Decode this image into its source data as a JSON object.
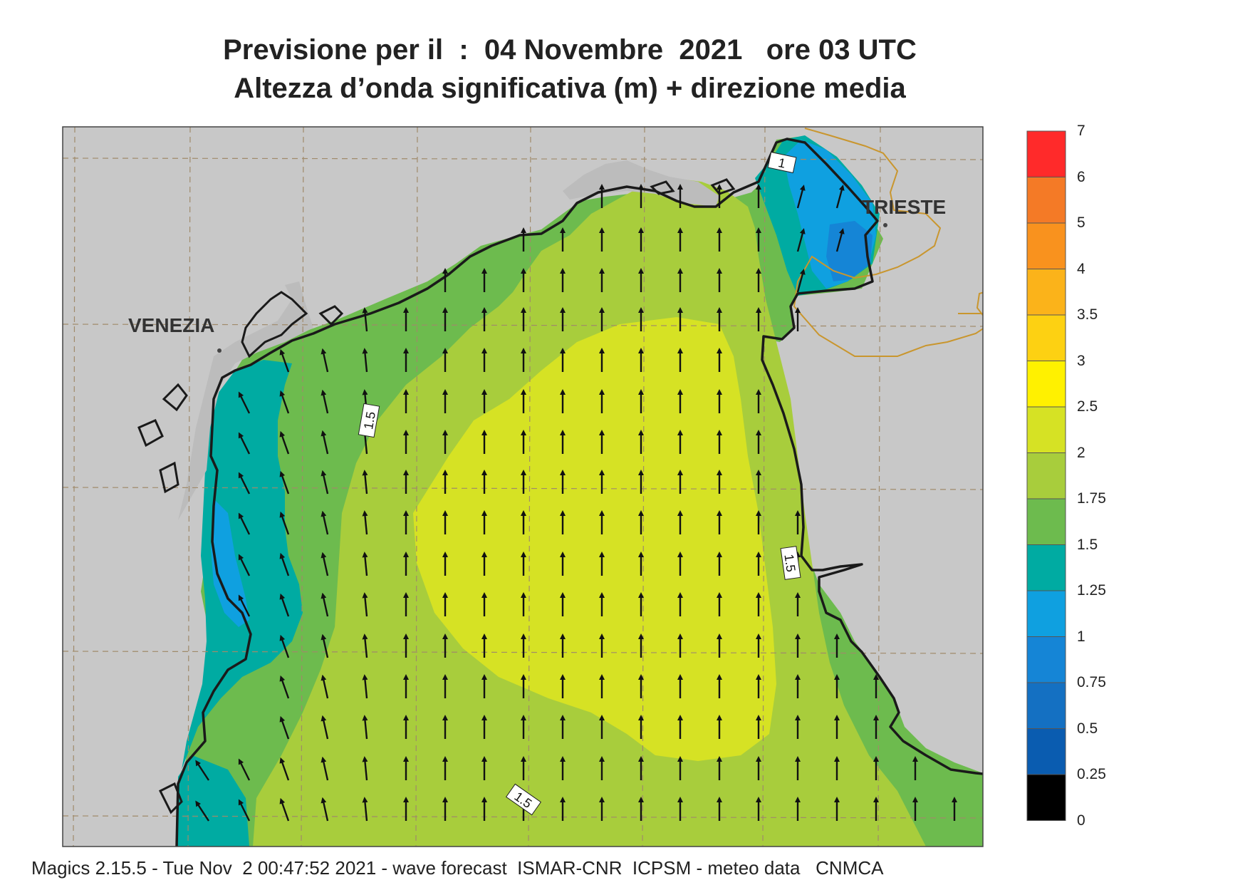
{
  "header": {
    "title_line1": "Previsione per il  :  04 Novembre  2021   ore 03 UTC",
    "title_line2": "Altezza d’onda significativa (m) + direzione media"
  },
  "map": {
    "place_labels": [
      "VENEZIA",
      "TRIESTE"
    ],
    "contour_labels": [
      "1",
      "1.5",
      "1.5",
      "1.5"
    ],
    "land_color": "#c8c8c8",
    "coast_color": "#1a1a1a",
    "border_color": "#c9962e"
  },
  "legend": {
    "levels": [
      {
        "label": "7",
        "color": "#ff1a8c"
      },
      {
        "label": "6",
        "color": "#ff2a2a"
      },
      {
        "label": "5",
        "color": "#f47a26"
      },
      {
        "label": "4",
        "color": "#f9921e"
      },
      {
        "label": "3.5",
        "color": "#fbb31a"
      },
      {
        "label": "3",
        "color": "#fdd112"
      },
      {
        "label": "2.5",
        "color": "#fff100"
      },
      {
        "label": "2",
        "color": "#d6e224"
      },
      {
        "label": "1.75",
        "color": "#a8cd3c"
      },
      {
        "label": "1.5",
        "color": "#6dbb4e"
      },
      {
        "label": "1.25",
        "color": "#00aba2"
      },
      {
        "label": "1",
        "color": "#0fa0e0"
      },
      {
        "label": "0.75",
        "color": "#1585d6"
      },
      {
        "label": "0.5",
        "color": "#1470c2"
      },
      {
        "label": "0.25",
        "color": "#0a5cb0"
      },
      {
        "label": "0",
        "color": ""
      }
    ]
  },
  "footer": {
    "text": "Magics 2.15.5 - Tue Nov  2 00:47:52 2021 - wave forecast  ISMAR-CNR  ICPSM - meteo data   CNMCA"
  }
}
